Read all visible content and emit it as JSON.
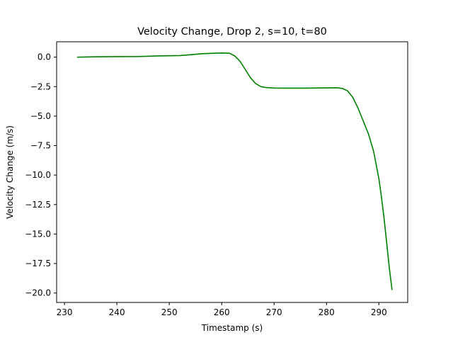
{
  "chart_data": {
    "type": "line",
    "title": "Velocity Change, Drop 2, s=10, t=80",
    "xlabel": "Timestamp (s)",
    "ylabel": "Velocity Change (m/s)",
    "xlim": [
      228.5,
      295.5
    ],
    "ylim": [
      -20.8,
      1.3
    ],
    "x_ticks": [
      230,
      240,
      250,
      260,
      270,
      280,
      290
    ],
    "x_tick_labels": [
      "230",
      "240",
      "250",
      "260",
      "270",
      "280",
      "290"
    ],
    "y_ticks": [
      0.0,
      -2.5,
      -5.0,
      -7.5,
      -10.0,
      -12.5,
      -15.0,
      -17.5,
      -20.0
    ],
    "y_tick_labels": [
      "0.0",
      "−2.5",
      "−5.0",
      "−7.5",
      "−10.0",
      "−12.5",
      "−15.0",
      "−17.5",
      "−20.0"
    ],
    "grid": false,
    "legend": "none",
    "series": [
      {
        "color": "#008000",
        "x": [
          232.5,
          236.0,
          240.0,
          244.0,
          248.0,
          252.0,
          254.0,
          256.0,
          258.0,
          260.0,
          261.5,
          262.5,
          263.5,
          264.5,
          265.5,
          266.5,
          267.5,
          268.5,
          270.0,
          272.0,
          276.0,
          280.0,
          282.0,
          283.0,
          284.0,
          285.0,
          286.0,
          287.0,
          288.0,
          289.0,
          290.0,
          290.5,
          291.0,
          291.5,
          292.0,
          292.5
        ],
        "y": [
          0.0,
          0.03,
          0.04,
          0.05,
          0.1,
          0.13,
          0.2,
          0.28,
          0.32,
          0.35,
          0.33,
          0.1,
          -0.35,
          -1.05,
          -1.75,
          -2.25,
          -2.5,
          -2.58,
          -2.62,
          -2.63,
          -2.63,
          -2.61,
          -2.6,
          -2.65,
          -2.85,
          -3.4,
          -4.3,
          -5.4,
          -6.5,
          -8.0,
          -10.3,
          -11.9,
          -13.7,
          -15.8,
          -17.9,
          -19.7
        ]
      }
    ]
  }
}
